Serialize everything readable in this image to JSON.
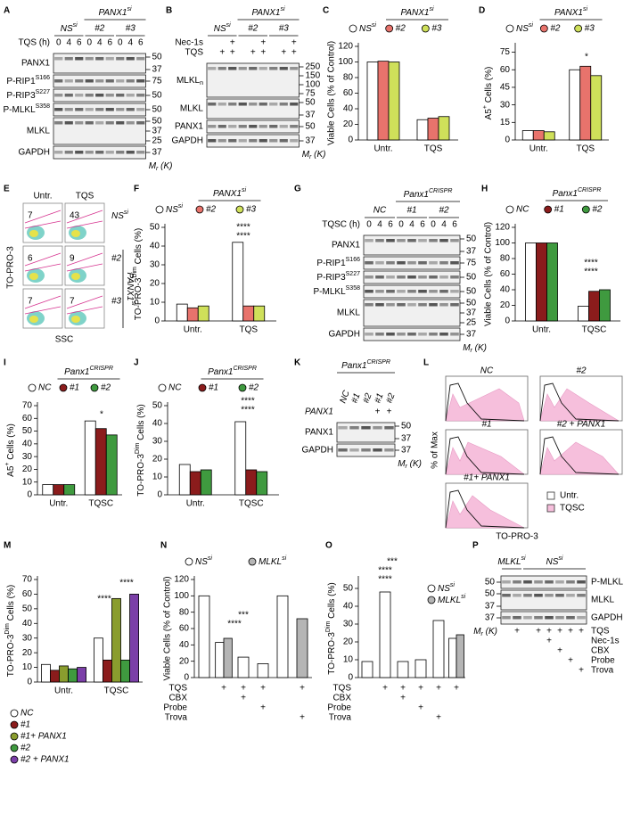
{
  "chart_data": [
    {
      "type": "bar",
      "panel": "C",
      "legend_title": [
        "PANX1",
        "si"
      ],
      "ylabel": "Viable Cells (% of Control)",
      "categories": [
        "Untr.",
        "TQS"
      ],
      "series": [
        {
          "name": [
            "NS",
            "si"
          ],
          "color": "#ffffff",
          "values": [
            100,
            26
          ]
        },
        {
          "name": "#2",
          "color": "#e8736c",
          "values": [
            101,
            28
          ]
        },
        {
          "name": "#3",
          "color": "#cfe05a",
          "values": [
            100,
            30
          ]
        }
      ],
      "ylim": [
        0,
        120
      ],
      "yticks": [
        0,
        20,
        40,
        60,
        80,
        100,
        120
      ]
    },
    {
      "type": "bar",
      "panel": "D",
      "legend_title": [
        "PANX1",
        "si"
      ],
      "ylabel": [
        "A5",
        "+",
        " Cells (%)"
      ],
      "categories": [
        "Untr.",
        "TQS"
      ],
      "series": [
        {
          "name": [
            "NS",
            "si"
          ],
          "color": "#ffffff",
          "values": [
            8,
            60
          ]
        },
        {
          "name": "#2",
          "color": "#e8736c",
          "values": [
            8,
            63
          ]
        },
        {
          "name": "#3",
          "color": "#cfe05a",
          "values": [
            7,
            55
          ]
        }
      ],
      "ylim": [
        0,
        80
      ],
      "yticks": [
        0,
        15,
        30,
        45,
        60,
        75
      ],
      "annotations": [
        "*"
      ]
    },
    {
      "type": "bar",
      "panel": "F",
      "legend_title": [
        "PANX1",
        "si"
      ],
      "ylabel": [
        "TO-PRO-3",
        "Dim",
        " Cells (%)"
      ],
      "categories": [
        "Untr.",
        "TQS"
      ],
      "series": [
        {
          "name": [
            "NS",
            "si"
          ],
          "color": "#ffffff",
          "values": [
            9,
            42
          ]
        },
        {
          "name": "#2",
          "color": "#e8736c",
          "values": [
            7,
            8
          ]
        },
        {
          "name": "#3",
          "color": "#cfe05a",
          "values": [
            8,
            8
          ]
        }
      ],
      "ylim": [
        0,
        50
      ],
      "yticks": [
        0,
        10,
        20,
        30,
        40,
        50
      ],
      "annotations": [
        "****",
        "****"
      ]
    },
    {
      "type": "bar",
      "panel": "H",
      "legend_title": [
        "Panx1",
        "CRISPR"
      ],
      "ylabel": "Viable Cells (% of Control)",
      "categories": [
        "Untr.",
        "TQSC"
      ],
      "series": [
        {
          "name": "NC",
          "color": "#ffffff",
          "values": [
            100,
            19
          ]
        },
        {
          "name": "#1",
          "color": "#8b1c1c",
          "values": [
            100,
            38
          ]
        },
        {
          "name": "#2",
          "color": "#3f9a3f",
          "values": [
            100,
            40
          ]
        }
      ],
      "ylim": [
        0,
        120
      ],
      "yticks": [
        0,
        20,
        40,
        60,
        80,
        100,
        120
      ],
      "annotations": [
        "****",
        "****"
      ]
    },
    {
      "type": "bar",
      "panel": "I",
      "legend_title": [
        "Panx1",
        "CRISPR"
      ],
      "ylabel": [
        "A5",
        "+",
        " Cells (%)"
      ],
      "categories": [
        "Untr.",
        "TQSC"
      ],
      "series": [
        {
          "name": "NC",
          "color": "#ffffff",
          "values": [
            8,
            58
          ]
        },
        {
          "name": "#1",
          "color": "#8b1c1c",
          "values": [
            8,
            52
          ]
        },
        {
          "name": "#2",
          "color": "#3f9a3f",
          "values": [
            8,
            47
          ]
        }
      ],
      "ylim": [
        0,
        70
      ],
      "yticks": [
        0,
        10,
        20,
        30,
        40,
        50,
        60,
        70
      ],
      "annotations": [
        "*"
      ]
    },
    {
      "type": "bar",
      "panel": "J",
      "legend_title": [
        "Panx1",
        "CRISPR"
      ],
      "ylabel": [
        "TO-PRO-3",
        "Dim",
        " Cells (%)"
      ],
      "categories": [
        "Untr.",
        "TQSC"
      ],
      "series": [
        {
          "name": "NC",
          "color": "#ffffff",
          "values": [
            17,
            41
          ]
        },
        {
          "name": "#1",
          "color": "#8b1c1c",
          "values": [
            13,
            14
          ]
        },
        {
          "name": "#2",
          "color": "#3f9a3f",
          "values": [
            14,
            13
          ]
        }
      ],
      "ylim": [
        0,
        50
      ],
      "yticks": [
        0,
        10,
        20,
        30,
        40,
        50
      ],
      "annotations": [
        "****",
        "****"
      ]
    },
    {
      "type": "bar",
      "panel": "M",
      "ylabel": [
        "TO-PRO-3",
        "Dim",
        " Cells (%)"
      ],
      "categories": [
        "Untr.",
        "TQSC"
      ],
      "series": [
        {
          "name": "NC",
          "color": "#ffffff",
          "values": [
            12,
            30
          ]
        },
        {
          "name": "#1",
          "color": "#8b1c1c",
          "values": [
            8,
            15
          ]
        },
        {
          "name": "#1+ PANX1",
          "color": "#8a9d2e",
          "values": [
            11,
            57
          ]
        },
        {
          "name": "#2",
          "color": "#3f9a3f",
          "values": [
            9,
            15
          ]
        },
        {
          "name": "#2 + PANX1",
          "color": "#7b3fa8",
          "values": [
            10,
            60
          ]
        }
      ],
      "ylim": [
        0,
        70
      ],
      "yticks": [
        0,
        10,
        20,
        30,
        40,
        50,
        60,
        70
      ],
      "annotations": [
        "****",
        "****"
      ]
    },
    {
      "type": "bar",
      "panel": "N",
      "ylabel": "Viable Cells (% of Control)",
      "categories": [
        null,
        null,
        null,
        null,
        null,
        null
      ],
      "series": [
        {
          "name": [
            "NS",
            "si"
          ],
          "color": "#ffffff",
          "values": [
            100,
            43,
            25,
            17,
            100,
            null
          ]
        },
        {
          "name": [
            "MLKL",
            "si"
          ],
          "color": "#b5b5b5",
          "values": [
            null,
            48,
            null,
            null,
            null,
            72
          ]
        }
      ],
      "treatments": [
        {
          "name": "TQS",
          "marks": [
            null,
            "+",
            "+",
            "+",
            null,
            "+"
          ]
        },
        {
          "name": "CBX",
          "marks": [
            null,
            null,
            "+",
            null,
            null,
            null
          ]
        },
        {
          "name": "Probe",
          "marks": [
            null,
            null,
            null,
            "+",
            null,
            null
          ]
        },
        {
          "name": "Trova",
          "marks": [
            null,
            null,
            null,
            null,
            null,
            "+"
          ]
        }
      ],
      "ylim": [
        0,
        120
      ],
      "yticks": [
        0,
        20,
        40,
        60,
        80,
        100,
        120
      ],
      "annotations": [
        "****",
        "***"
      ]
    },
    {
      "type": "bar",
      "panel": "O",
      "ylabel": [
        "TO-PRO-3",
        "Dim",
        " Cells (%)"
      ],
      "categories": [
        null,
        null,
        null,
        null,
        null,
        null
      ],
      "series": [
        {
          "name": [
            "NS",
            "si"
          ],
          "color": "#ffffff",
          "values": [
            9,
            48,
            9,
            10,
            32,
            22
          ]
        },
        {
          "name": [
            "MLKL",
            "si"
          ],
          "color": "#b5b5b5",
          "values": [
            null,
            null,
            null,
            null,
            null,
            24
          ]
        }
      ],
      "treatments": [
        {
          "name": "TQS",
          "marks": [
            null,
            "+",
            "+",
            "+",
            "+",
            "+"
          ]
        },
        {
          "name": "CBX",
          "marks": [
            null,
            null,
            "+",
            null,
            null,
            null
          ]
        },
        {
          "name": "Probe",
          "marks": [
            null,
            null,
            null,
            "+",
            null,
            null
          ]
        },
        {
          "name": "Trova",
          "marks": [
            null,
            null,
            null,
            null,
            "+",
            null
          ]
        }
      ],
      "ylim": [
        0,
        55
      ],
      "yticks": [
        0,
        10,
        20,
        30,
        40,
        50
      ],
      "annotations": [
        "****",
        "****",
        "***"
      ]
    }
  ],
  "blots": {
    "A": {
      "panel": "A",
      "header": [
        "PANX1",
        "si"
      ],
      "groups": [
        [
          "NS",
          "si"
        ],
        "#2",
        "#3"
      ],
      "conditions": [
        {
          "label": "TQS (h)",
          "marks": [
            "0",
            "4",
            "6",
            "0",
            "4",
            "6",
            "0",
            "4",
            "6"
          ]
        }
      ],
      "rows": [
        {
          "label": "PANX1",
          "mw": [
            50,
            37
          ]
        },
        {
          "label": [
            "P-RIP1",
            "S166"
          ],
          "mw": [
            75
          ]
        },
        {
          "label": [
            "P-RIP3",
            "S227"
          ],
          "mw": [
            50
          ]
        },
        {
          "label": [
            "P-MLKL",
            "S358"
          ],
          "mw": [
            50
          ]
        },
        {
          "label": "MLKL",
          "mw": [
            50,
            37,
            25
          ]
        },
        {
          "label": "GAPDH",
          "mw": [
            37
          ]
        }
      ],
      "mr": [
        "M",
        "r",
        " (K)"
      ]
    },
    "B": {
      "panel": "B",
      "header": [
        "PANX1",
        "si"
      ],
      "groups": [
        [
          "NS",
          "si"
        ],
        "#2",
        "#3"
      ],
      "conditions": [
        {
          "label": "Nec-1s",
          "marks": [
            null,
            null,
            "+",
            null,
            null,
            "+",
            null,
            null,
            "+"
          ]
        },
        {
          "label": "TQS",
          "marks": [
            null,
            "+",
            "+",
            null,
            "+",
            "+",
            null,
            "+",
            "+"
          ]
        }
      ],
      "rows": [
        {
          "label": [
            "MLKL",
            "n"
          ],
          "mw": [
            250,
            150,
            100,
            75
          ]
        },
        {
          "label": "MLKL",
          "mw": [
            50,
            37
          ]
        },
        {
          "label": "PANX1",
          "mw": [
            50
          ]
        },
        {
          "label": "GAPDH",
          "mw": [
            37
          ]
        }
      ],
      "mr": [
        "M",
        "r",
        " (K)"
      ]
    },
    "G": {
      "panel": "G",
      "header": [
        "Panx1",
        "CRISPR"
      ],
      "groups": [
        "NC",
        "#1",
        "#2"
      ],
      "conditions": [
        {
          "label": "TQSC (h)",
          "marks": [
            "0",
            "4",
            "6",
            "0",
            "4",
            "6",
            "0",
            "4",
            "6"
          ]
        }
      ],
      "rows": [
        {
          "label": "PANX1",
          "mw": [
            50,
            37
          ]
        },
        {
          "label": [
            "P-RIP1",
            "S166"
          ],
          "mw": [
            75
          ]
        },
        {
          "label": [
            "P-RIP3",
            "S227"
          ],
          "mw": [
            50
          ]
        },
        {
          "label": [
            "P-MLKL",
            "S358"
          ],
          "mw": [
            50
          ]
        },
        {
          "label": "MLKL",
          "mw": [
            50,
            37,
            25
          ]
        },
        {
          "label": "GAPDH",
          "mw": [
            37
          ]
        }
      ],
      "mr": [
        "M",
        "r",
        " (K)"
      ]
    },
    "K": {
      "panel": "K",
      "header": [
        "Panx1",
        "CRISPR"
      ],
      "groups": [
        "NC",
        "#1",
        "#2",
        "#1",
        "#2"
      ],
      "conditions": [
        {
          "label": "PANX1",
          "marks": [
            null,
            null,
            null,
            "+",
            "+"
          ]
        }
      ],
      "rows": [
        {
          "label": "PANX1",
          "mw": [
            50,
            37
          ]
        },
        {
          "label": "GAPDH",
          "mw": [
            37
          ]
        }
      ],
      "mr": [
        "M",
        "r",
        " (K)"
      ]
    },
    "P": {
      "panel": "P",
      "groups": [
        [
          "MLKL",
          "si"
        ],
        [
          "NS",
          "si"
        ]
      ],
      "rows": [
        {
          "label": "P-MLKL",
          "mw": [
            50
          ]
        },
        {
          "label": "MLKL",
          "mw": [
            50,
            37
          ]
        },
        {
          "label": "GAPDH",
          "mw": [
            37
          ]
        }
      ],
      "conditions": [
        {
          "label": "TQS",
          "marks": [
            null,
            "+",
            null,
            "+",
            "+",
            "+",
            "+",
            "+"
          ]
        },
        {
          "label": "Nec-1s",
          "marks": [
            null,
            null,
            null,
            null,
            "+",
            null,
            null,
            null
          ]
        },
        {
          "label": "CBX",
          "marks": [
            null,
            null,
            null,
            null,
            null,
            "+",
            null,
            null
          ]
        },
        {
          "label": "Probe",
          "marks": [
            null,
            null,
            null,
            null,
            null,
            null,
            "+",
            null
          ]
        },
        {
          "label": "Trova",
          "marks": [
            null,
            null,
            null,
            null,
            null,
            null,
            null,
            "+"
          ]
        }
      ],
      "mr": [
        "M",
        "r",
        " (K)"
      ]
    }
  },
  "flow": {
    "panel": "E",
    "columns": [
      "Untr.",
      "TQS"
    ],
    "rows": [
      [
        "NS",
        "si"
      ],
      "#2",
      "#3"
    ],
    "gates": [
      [
        7,
        43
      ],
      [
        6,
        9
      ],
      [
        7,
        7
      ]
    ],
    "side_label": [
      "PANX1",
      "si"
    ],
    "ylabel": "TO-PRO-3",
    "xlabel": "SSC"
  },
  "histograms": {
    "panel": "L",
    "plots": [
      "NC",
      "#2",
      "#1",
      "#2 + PANX1",
      "#1+ PANX1"
    ],
    "legend": [
      {
        "name": "Untr.",
        "color": "#ffffff"
      },
      {
        "name": "TQSC",
        "color": "#f6bfdc"
      }
    ],
    "ylabel": "% of Max",
    "xlabel": "TO-PRO-3"
  }
}
